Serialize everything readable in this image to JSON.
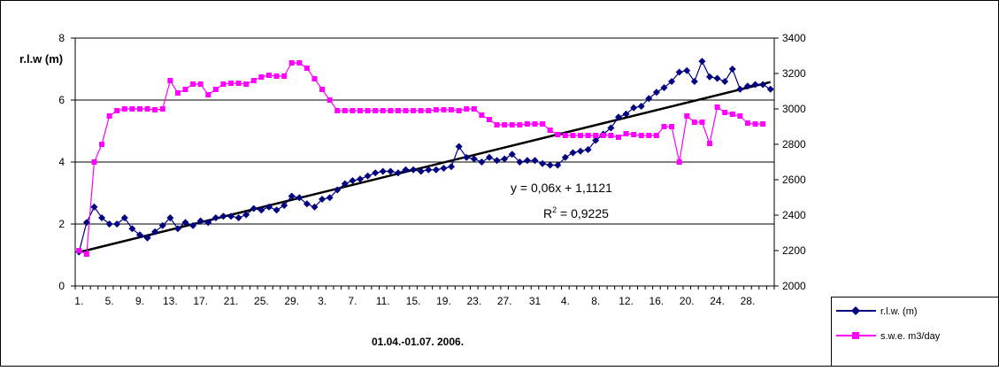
{
  "chart_data": {
    "type": "line",
    "xlabel": "01.04.-01.07. 2006.",
    "ylabel": "r.l.w (m)",
    "x_ticks": [
      "1.",
      "5.",
      "9.",
      "13.",
      "17.",
      "21.",
      "25.",
      "29.",
      "3.",
      "7.",
      "11.",
      "15.",
      "19.",
      "23.",
      "27.",
      "31",
      "4.",
      "8.",
      "12.",
      "16.",
      "20.",
      "24.",
      "28."
    ],
    "y_left": {
      "min": 0,
      "max": 8,
      "ticks": [
        0,
        2,
        4,
        6,
        8
      ]
    },
    "y_right": {
      "min": 2000,
      "max": 3400,
      "ticks": [
        2000,
        2200,
        2400,
        2600,
        2800,
        3000,
        3200,
        3400
      ]
    },
    "grid": "horizontal",
    "legend": {
      "position": "bottom-right"
    },
    "series": [
      {
        "name": "r.l.w. (m)",
        "axis": "left",
        "color": "#000080",
        "marker": "diamond",
        "values": [
          1.1,
          2.05,
          2.55,
          2.2,
          2.0,
          2.0,
          2.2,
          1.85,
          1.65,
          1.55,
          1.75,
          1.95,
          2.2,
          1.85,
          2.05,
          1.95,
          2.1,
          2.05,
          2.2,
          2.25,
          2.25,
          2.2,
          2.3,
          2.5,
          2.45,
          2.55,
          2.45,
          2.6,
          2.9,
          2.85,
          2.65,
          2.55,
          2.8,
          2.85,
          3.1,
          3.3,
          3.4,
          3.45,
          3.55,
          3.65,
          3.7,
          3.7,
          3.65,
          3.75,
          3.75,
          3.7,
          3.75,
          3.75,
          3.8,
          3.85,
          4.5,
          4.15,
          4.1,
          4.0,
          4.15,
          4.05,
          4.1,
          4.25,
          4.0,
          4.05,
          4.05,
          3.95,
          3.9,
          3.9,
          4.15,
          4.3,
          4.35,
          4.4,
          4.7,
          4.9,
          5.1,
          5.45,
          5.55,
          5.75,
          5.8,
          6.05,
          6.25,
          6.4,
          6.6,
          6.9,
          6.95,
          6.6,
          7.25,
          6.75,
          6.7,
          6.6,
          7.0,
          6.35,
          6.45,
          6.5,
          6.5,
          6.35
        ]
      },
      {
        "name": "s.w.e. m3/day",
        "axis": "right",
        "color": "#ff00ff",
        "marker": "square",
        "values": [
          2200,
          2180,
          2700,
          2800,
          2960,
          2990,
          3000,
          3000,
          3000,
          3000,
          2995,
          3000,
          3160,
          3090,
          3110,
          3140,
          3140,
          3080,
          3110,
          3140,
          3145,
          3145,
          3140,
          3160,
          3180,
          3190,
          3185,
          3185,
          3260,
          3260,
          3230,
          3170,
          3110,
          3050,
          2990,
          2990,
          2990,
          2990,
          2990,
          2990,
          2990,
          2990,
          2990,
          2990,
          2990,
          2990,
          2990,
          2995,
          2995,
          2995,
          2990,
          3000,
          3000,
          2965,
          2940,
          2910,
          2910,
          2910,
          2910,
          2915,
          2915,
          2915,
          2880,
          2855,
          2850,
          2850,
          2850,
          2850,
          2850,
          2850,
          2850,
          2840,
          2860,
          2855,
          2850,
          2850,
          2850,
          2900,
          2900,
          2700,
          2960,
          2925,
          2925,
          2805,
          3010,
          2980,
          2970,
          2960,
          2920,
          2915,
          2915
        ]
      }
    ],
    "trendline": {
      "equation": "y = 0,06x + 1,1121",
      "r2_prefix": "R",
      "r2_exp": "2",
      "r2_suffix": " = 0,9225",
      "start": 1.09,
      "end": 6.58,
      "color": "#000000"
    }
  }
}
